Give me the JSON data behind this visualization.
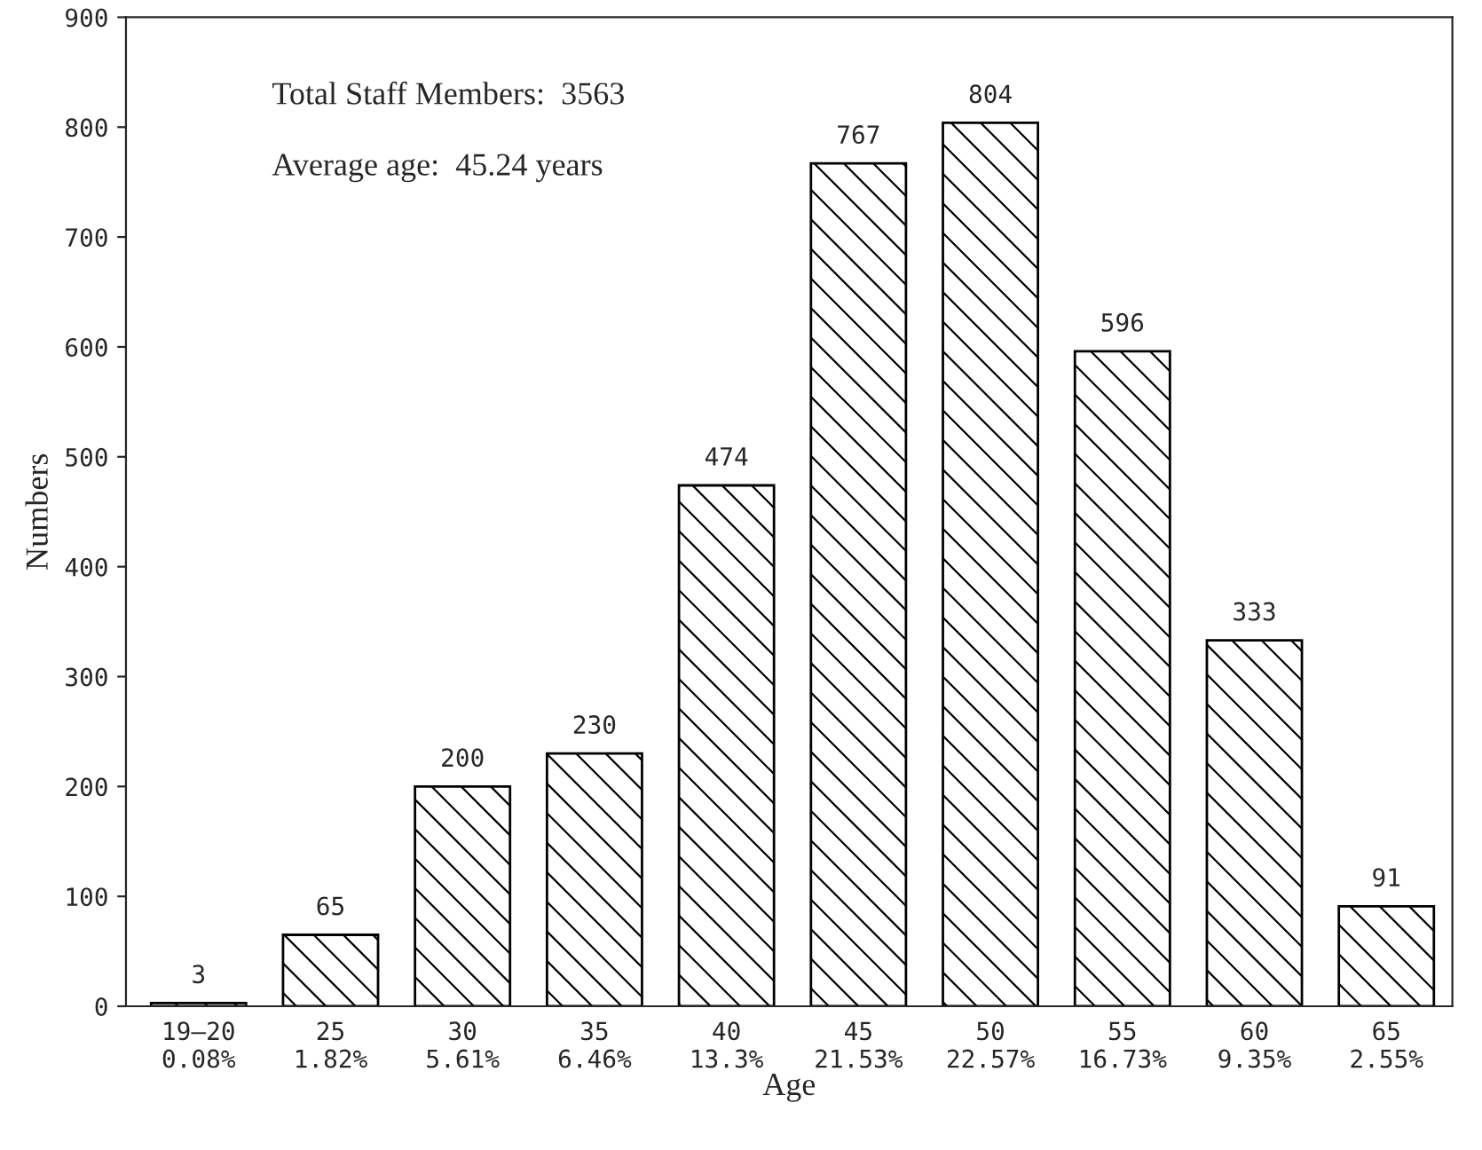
{
  "chart_data": {
    "type": "bar",
    "xlabel": "Age",
    "ylabel": "Numbers",
    "categories": [
      "19–20\n0.08%",
      "25\n1.82%",
      "30\n5.61%",
      "35\n6.46%",
      "40\n13.3%",
      "45\n21.53%",
      "50\n22.57%",
      "55\n16.73%",
      "60\n9.35%",
      "65\n2.55%"
    ],
    "values": [
      3,
      65,
      200,
      230,
      474,
      767,
      804,
      596,
      333,
      91
    ],
    "color": "#000000",
    "data_labels": true,
    "grid": false,
    "legend": false,
    "ylim": [
      0,
      900
    ],
    "yticks": [
      0,
      100,
      200,
      300,
      400,
      500,
      600,
      700,
      800,
      900
    ],
    "annotations": [
      "Total Staff Members:  3563",
      "Average age:  45.24 years"
    ]
  }
}
